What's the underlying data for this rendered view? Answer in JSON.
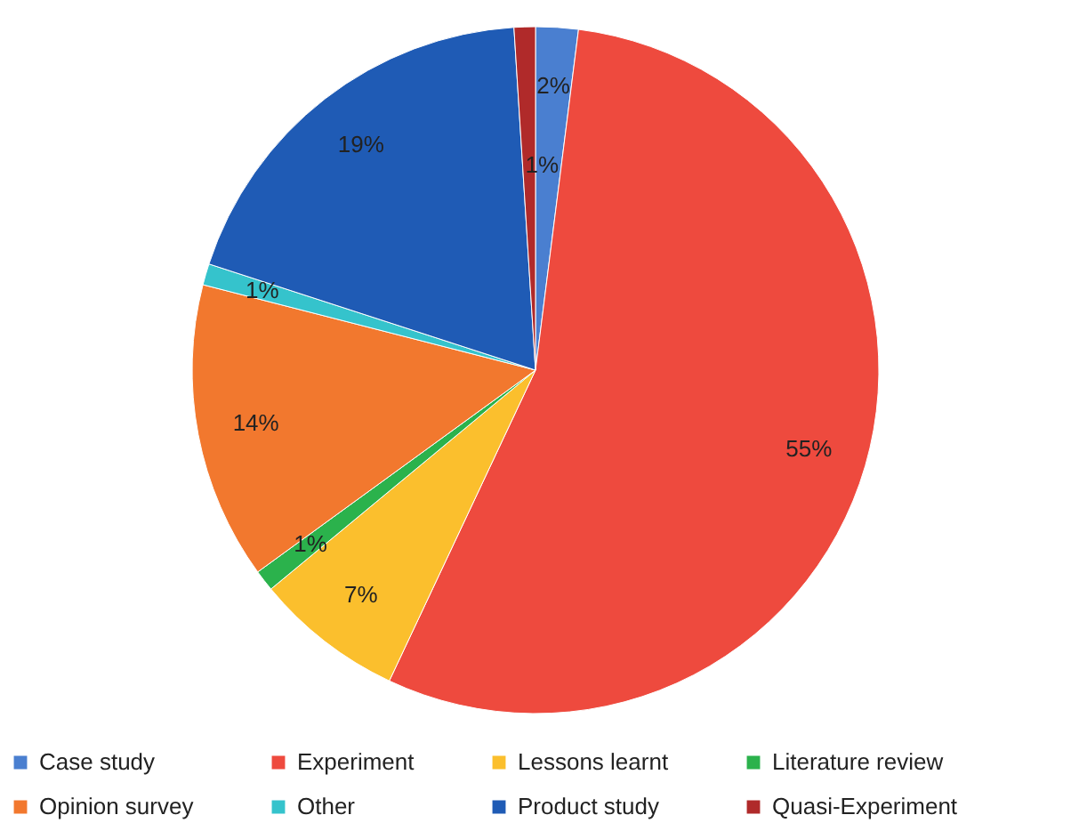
{
  "chart_data": {
    "type": "pie",
    "categories": [
      "Case study",
      "Experiment",
      "Lessons learnt",
      "Literature review",
      "Opinion survey",
      "Other",
      "Product study",
      "Quasi-Experiment"
    ],
    "values": [
      2,
      55,
      7,
      1,
      14,
      1,
      19,
      1
    ],
    "value_labels": [
      "2%",
      "55%",
      "7%",
      "1%",
      "14%",
      "1%",
      "19%",
      "1%"
    ],
    "colors": [
      "#4a7fd0",
      "#ee4a3e",
      "#fbbf2d",
      "#2bb24c",
      "#f2782e",
      "#35c3cc",
      "#1f5bb5",
      "#b02a2a"
    ],
    "legend": "bottom"
  }
}
